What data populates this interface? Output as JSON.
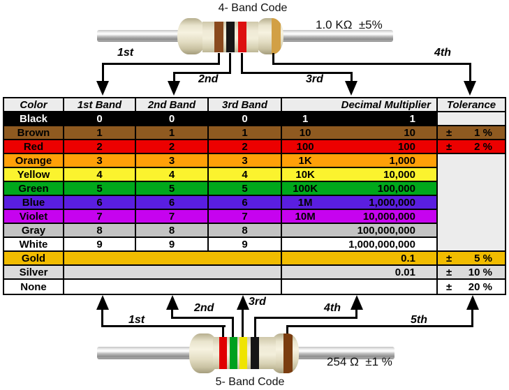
{
  "four_band": {
    "title": "4- Band Code",
    "value": "1.0 KΩ  ±5%",
    "arrow_labels": [
      "1st",
      "2nd",
      "3rd",
      "4th"
    ],
    "body_color": "#EDE9D6",
    "bands": [
      {
        "name": "brown",
        "hex": "#8A4A1E"
      },
      {
        "name": "black",
        "hex": "#161616"
      },
      {
        "name": "red",
        "hex": "#DD1010"
      },
      {
        "name": "gold",
        "hex": "#D2A045"
      }
    ]
  },
  "five_band": {
    "title": "5- Band Code",
    "value": "254 Ω  ±1 %",
    "arrow_labels": [
      "1st",
      "2nd",
      "3rd",
      "4th",
      "5th"
    ],
    "body_color": "#EDE9D6",
    "bands": [
      {
        "name": "red",
        "hex": "#E00000"
      },
      {
        "name": "green",
        "hex": "#00A01E"
      },
      {
        "name": "yellow",
        "hex": "#EFE400"
      },
      {
        "name": "black",
        "hex": "#161616"
      },
      {
        "name": "brown",
        "hex": "#7A3D10"
      }
    ]
  },
  "table": {
    "headers": [
      "Color",
      "1st Band",
      "2nd Band",
      "3rd Band",
      "Decimal Multiplier",
      "Tolerance"
    ],
    "plus_minus": "±",
    "empty_cell_bg": "#ECECEC",
    "rows": [
      {
        "name": "Black",
        "bg": "#000000",
        "fg": "#FFFFFF",
        "b1": "0",
        "b2": "0",
        "b3": "0",
        "mult_short": "1",
        "mult_long": "1",
        "tol": "",
        "merged_bands": false
      },
      {
        "name": "Brown",
        "bg": "#8F5A20",
        "fg": "#000000",
        "b1": "1",
        "b2": "1",
        "b3": "1",
        "mult_short": "10",
        "mult_long": "10",
        "tol": "1 %",
        "merged_bands": false
      },
      {
        "name": "Red",
        "bg": "#EC0000",
        "fg": "#000000",
        "b1": "2",
        "b2": "2",
        "b3": "2",
        "mult_short": "100",
        "mult_long": "100",
        "tol": "2 %",
        "merged_bands": false
      },
      {
        "name": "Orange",
        "bg": "#FFA008",
        "fg": "#000000",
        "b1": "3",
        "b2": "3",
        "b3": "3",
        "mult_short": "1K",
        "mult_long": "1,000",
        "tol": "",
        "merged_bands": false
      },
      {
        "name": "Yellow",
        "bg": "#FBF32E",
        "fg": "#000000",
        "b1": "4",
        "b2": "4",
        "b3": "4",
        "mult_short": "10K",
        "mult_long": "10,000",
        "tol": "",
        "merged_bands": false
      },
      {
        "name": "Green",
        "bg": "#00A81C",
        "fg": "#000000",
        "b1": "5",
        "b2": "5",
        "b3": "5",
        "mult_short": "100K",
        "mult_long": "100,000",
        "tol": "",
        "merged_bands": false
      },
      {
        "name": "Blue",
        "bg": "#5A1EE0",
        "fg": "#000000",
        "b1": "6",
        "b2": "6",
        "b3": "6",
        "mult_short": "1M",
        "mult_long": "1,000,000",
        "tol": "",
        "merged_bands": false
      },
      {
        "name": "Violet",
        "bg": "#C603EF",
        "fg": "#000000",
        "b1": "7",
        "b2": "7",
        "b3": "7",
        "mult_short": "10M",
        "mult_long": "10,000,000",
        "tol": "",
        "merged_bands": false
      },
      {
        "name": "Gray",
        "bg": "#C3C3C3",
        "fg": "#000000",
        "b1": "8",
        "b2": "8",
        "b3": "8",
        "mult_short": "",
        "mult_long": "100,000,000",
        "tol": "",
        "merged_bands": false
      },
      {
        "name": "White",
        "bg": "#FFFFFF",
        "fg": "#000000",
        "b1": "9",
        "b2": "9",
        "b3": "9",
        "mult_short": "",
        "mult_long": "1,000,000,000",
        "tol": "",
        "merged_bands": false
      },
      {
        "name": "Gold",
        "bg": "#F1BC00",
        "fg": "#000000",
        "b1": "",
        "b2": "",
        "b3": "",
        "mult_short": "",
        "mult_long": "0.1",
        "tol": "5 %",
        "merged_bands": true
      },
      {
        "name": "Silver",
        "bg": "#DBDBDB",
        "fg": "#000000",
        "b1": "",
        "b2": "",
        "b3": "",
        "mult_short": "",
        "mult_long": "0.01",
        "tol": "10 %",
        "merged_bands": true
      },
      {
        "name": "None",
        "bg": "#FFFFFF",
        "fg": "#000000",
        "b1": "",
        "b2": "",
        "b3": "",
        "mult_short": "",
        "mult_long": "",
        "tol": "20 %",
        "merged_bands": true
      }
    ]
  }
}
